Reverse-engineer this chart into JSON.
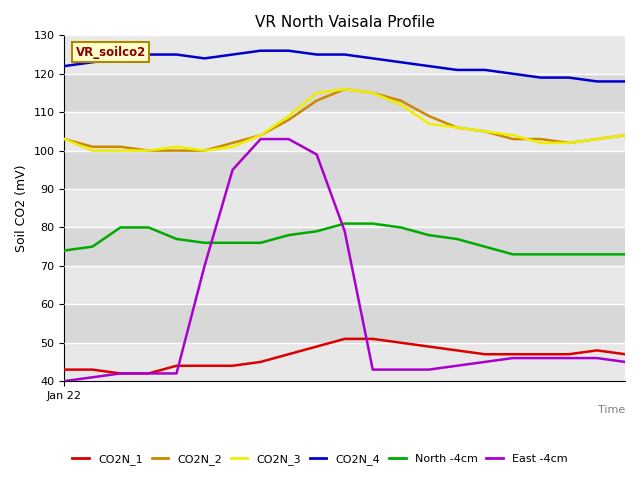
{
  "title": "VR North Vaisala Profile",
  "xlabel": "Time",
  "ylabel": "Soil CO2 (mV)",
  "ylim": [
    40,
    130
  ],
  "yticks": [
    40,
    50,
    60,
    70,
    80,
    90,
    100,
    110,
    120,
    130
  ],
  "xlabel_text": "Jan 22",
  "watermark": "VR_soilco2",
  "x": [
    0,
    1,
    2,
    3,
    4,
    5,
    6,
    7,
    8,
    9,
    10,
    11,
    12,
    13,
    14,
    15,
    16,
    17,
    18,
    19,
    20
  ],
  "CO2N_1": [
    43,
    43,
    42,
    42,
    44,
    44,
    44,
    45,
    47,
    49,
    51,
    51,
    50,
    49,
    48,
    47,
    47,
    47,
    47,
    48,
    47
  ],
  "CO2N_2": [
    103,
    101,
    101,
    100,
    100,
    100,
    102,
    104,
    108,
    113,
    116,
    115,
    113,
    109,
    106,
    105,
    103,
    103,
    102,
    103,
    104
  ],
  "CO2N_3": [
    103,
    100,
    100,
    100,
    101,
    100,
    101,
    104,
    109,
    115,
    116,
    115,
    112,
    107,
    106,
    105,
    104,
    102,
    102,
    103,
    104
  ],
  "CO2N_4": [
    122,
    123,
    124,
    125,
    125,
    124,
    125,
    126,
    126,
    125,
    125,
    124,
    123,
    122,
    121,
    121,
    120,
    119,
    119,
    118,
    118
  ],
  "North_4cm": [
    74,
    75,
    80,
    80,
    77,
    76,
    76,
    76,
    78,
    79,
    81,
    81,
    80,
    78,
    77,
    75,
    73,
    73,
    73,
    73,
    73
  ],
  "East_4cm": [
    40,
    41,
    42,
    42,
    42,
    70,
    95,
    103,
    103,
    99,
    79,
    43,
    43,
    43,
    44,
    45,
    46,
    46,
    46,
    46,
    45
  ],
  "colors": {
    "CO2N_1": "#dd0000",
    "CO2N_2": "#cc8800",
    "CO2N_3": "#eeee00",
    "CO2N_4": "#0000cc",
    "North_4cm": "#00aa00",
    "East_4cm": "#aa00cc"
  },
  "band_colors": [
    "#e8e8e8",
    "#d8d8d8"
  ],
  "fig_bg": "#ffffff",
  "plot_bg": "#e8e8e8",
  "legend_labels": [
    "CO2N_1",
    "CO2N_2",
    "CO2N_3",
    "CO2N_4",
    "North -4cm",
    "East -4cm"
  ]
}
